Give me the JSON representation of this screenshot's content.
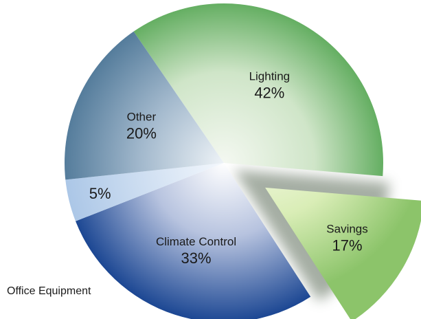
{
  "chart_data": {
    "type": "pie",
    "title": "",
    "slices": [
      {
        "label": "Lighting",
        "value": 42,
        "value_label": "42%",
        "color": "#7fbf7a",
        "exploded": false
      },
      {
        "label": "Savings",
        "value": 17,
        "value_label": "17%",
        "color": "#a8d67e",
        "exploded": true
      },
      {
        "label": "Climate Control",
        "value": 33,
        "value_label": "33%",
        "color": "#1f4e9a",
        "exploded": false
      },
      {
        "label": "Office Equipment",
        "value": 5,
        "value_label": "5%",
        "color": "#b7d0ea",
        "exploded": false
      },
      {
        "label": "Other",
        "value": 20,
        "value_label": "20%",
        "color": "#5f87a8",
        "exploded": false
      }
    ]
  }
}
